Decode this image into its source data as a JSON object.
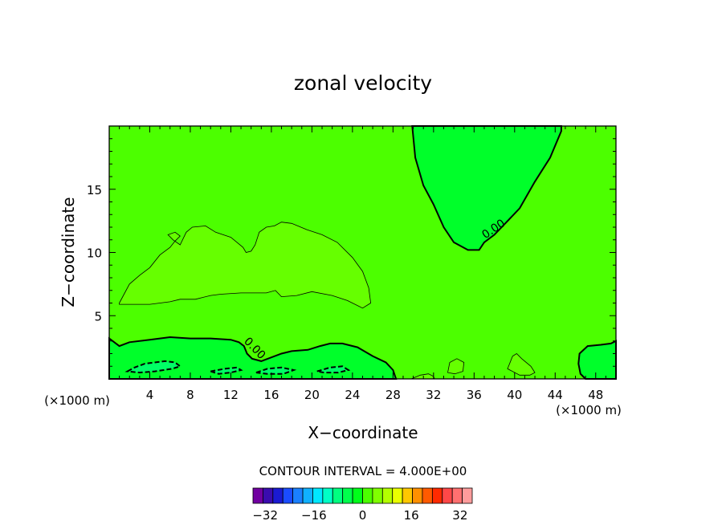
{
  "chart_data": {
    "type": "heatmap",
    "title": "zonal velocity",
    "xlabel": "X−coordinate",
    "ylabel": "Z−coordinate",
    "x_unit_left": "(×1000 m)",
    "x_unit_right": "(×1000 m)",
    "xlim": [
      0,
      50
    ],
    "ylim": [
      0,
      20
    ],
    "x_ticks": [
      4,
      8,
      12,
      16,
      20,
      24,
      28,
      32,
      36,
      40,
      44,
      48
    ],
    "y_ticks": [
      5,
      10,
      15
    ],
    "contour_interval_label": "CONTOUR INTERVAL = 4.000E+00",
    "contour_labels": [
      "0.00",
      "0.00"
    ],
    "background_level": 0,
    "regions": [
      {
        "name": "positive-mid-layer",
        "level": 4,
        "color": "#66ff00",
        "points": [
          [
            1,
            6
          ],
          [
            2,
            7.5
          ],
          [
            3,
            8.2
          ],
          [
            4,
            8.8
          ],
          [
            5,
            9.8
          ],
          [
            6,
            10.4
          ],
          [
            6.5,
            10.9
          ],
          [
            7,
            11.3
          ],
          [
            6.5,
            11.6
          ],
          [
            5.8,
            11.4
          ],
          [
            6.3,
            11
          ],
          [
            7,
            10.6
          ],
          [
            7.6,
            11.6
          ],
          [
            8.2,
            12
          ],
          [
            9.5,
            12.1
          ],
          [
            10.5,
            11.6
          ],
          [
            12,
            11.2
          ],
          [
            13.2,
            10.4
          ],
          [
            13.5,
            10
          ],
          [
            14,
            10.1
          ],
          [
            14.4,
            10.6
          ],
          [
            14.8,
            11.6
          ],
          [
            15.5,
            12
          ],
          [
            16.3,
            12.1
          ],
          [
            17,
            12.4
          ],
          [
            18,
            12.3
          ],
          [
            19.5,
            11.8
          ],
          [
            21,
            11.4
          ],
          [
            22.5,
            10.8
          ],
          [
            24,
            9.6
          ],
          [
            25,
            8.5
          ],
          [
            25.6,
            7.2
          ],
          [
            25.8,
            6
          ],
          [
            25,
            5.6
          ],
          [
            23.5,
            6.2
          ],
          [
            22,
            6.6
          ],
          [
            20,
            6.9
          ],
          [
            18.5,
            6.6
          ],
          [
            17,
            6.5
          ],
          [
            16.4,
            7
          ],
          [
            15.5,
            6.8
          ],
          [
            13,
            6.8
          ],
          [
            11,
            6.7
          ],
          [
            10,
            6.6
          ],
          [
            8.5,
            6.3
          ],
          [
            7,
            6.3
          ],
          [
            6,
            6.1
          ],
          [
            4,
            5.9
          ],
          [
            2.5,
            5.9
          ],
          [
            1,
            5.9
          ]
        ]
      },
      {
        "name": "negative-upper-right",
        "level": -4,
        "color": "#00ff2a",
        "points": [
          [
            29.9,
            20
          ],
          [
            30.2,
            17.5
          ],
          [
            31,
            15.3
          ],
          [
            32,
            13.8
          ],
          [
            33,
            12
          ],
          [
            34,
            10.8
          ],
          [
            35.4,
            10.2
          ],
          [
            36.5,
            10.2
          ],
          [
            37,
            10.8
          ],
          [
            38,
            11.4
          ],
          [
            39.2,
            12.4
          ],
          [
            40.5,
            13.5
          ],
          [
            42,
            15.6
          ],
          [
            43.5,
            17.5
          ],
          [
            44.6,
            19.6
          ],
          [
            44.6,
            20
          ]
        ]
      },
      {
        "name": "negative-bottom-left",
        "level": -4,
        "color": "#00ff2a",
        "points": [
          [
            0,
            0
          ],
          [
            0,
            3.2
          ],
          [
            1,
            2.6
          ],
          [
            2,
            2.9
          ],
          [
            4,
            3.1
          ],
          [
            6,
            3.3
          ],
          [
            8,
            3.2
          ],
          [
            10,
            3.2
          ],
          [
            12,
            3.1
          ],
          [
            12.8,
            2.9
          ],
          [
            13.3,
            2.6
          ],
          [
            13.6,
            2
          ],
          [
            14.1,
            1.6
          ],
          [
            15,
            1.4
          ],
          [
            16,
            1.7
          ],
          [
            17,
            2
          ],
          [
            18,
            2.2
          ],
          [
            19.6,
            2.3
          ],
          [
            20.8,
            2.6
          ],
          [
            21.8,
            2.8
          ],
          [
            23,
            2.8
          ],
          [
            24.5,
            2.5
          ],
          [
            26,
            1.8
          ],
          [
            27.3,
            1.3
          ],
          [
            28,
            0.7
          ],
          [
            28.3,
            0
          ]
        ]
      },
      {
        "name": "negative-bottom-right",
        "level": -4,
        "color": "#00ff2a",
        "points": [
          [
            47,
            0
          ],
          [
            46.5,
            0.4
          ],
          [
            46.3,
            1.2
          ],
          [
            46.4,
            2
          ],
          [
            47.2,
            2.6
          ],
          [
            48.5,
            2.7
          ],
          [
            49.5,
            2.8
          ],
          [
            50,
            3
          ],
          [
            50,
            0
          ]
        ]
      },
      {
        "name": "strong-negative-patch-1",
        "level": -8,
        "color": "#00ff66",
        "points": [
          [
            1.8,
            0.6
          ],
          [
            2.5,
            0.9
          ],
          [
            3.5,
            1.2
          ],
          [
            4.5,
            1.3
          ],
          [
            5.5,
            1.4
          ],
          [
            6.5,
            1.3
          ],
          [
            7,
            1
          ],
          [
            6.2,
            0.8
          ],
          [
            4.5,
            0.6
          ],
          [
            3,
            0.5
          ]
        ]
      },
      {
        "name": "strong-negative-patch-2",
        "level": -8,
        "color": "#00ff66",
        "points": [
          [
            10,
            0.6
          ],
          [
            10.8,
            0.4
          ],
          [
            12,
            0.5
          ],
          [
            13,
            0.7
          ],
          [
            12.6,
            0.9
          ],
          [
            11.4,
            0.8
          ]
        ]
      },
      {
        "name": "strong-negative-patch-3",
        "level": -8,
        "color": "#00ff66",
        "points": [
          [
            14.5,
            0.5
          ],
          [
            15.6,
            0.8
          ],
          [
            17,
            0.9
          ],
          [
            18.2,
            0.7
          ],
          [
            17.2,
            0.4
          ],
          [
            15.6,
            0.4
          ]
        ]
      },
      {
        "name": "strong-negative-patch-4",
        "level": -8,
        "color": "#00ff66",
        "points": [
          [
            20.5,
            0.6
          ],
          [
            21.8,
            0.9
          ],
          [
            23,
            1
          ],
          [
            23.6,
            0.7
          ],
          [
            22.6,
            0.5
          ],
          [
            21.2,
            0.5
          ]
        ]
      },
      {
        "name": "positive-patch-bottom-1",
        "level": 4,
        "color": "#66ff00",
        "points": [
          [
            33.4,
            0.5
          ],
          [
            33.6,
            1.3
          ],
          [
            34.3,
            1.6
          ],
          [
            35,
            1.3
          ],
          [
            34.9,
            0.6
          ],
          [
            34.1,
            0.4
          ]
        ]
      },
      {
        "name": "positive-patch-bottom-2",
        "level": 4,
        "color": "#66ff00",
        "points": [
          [
            39.3,
            0.8
          ],
          [
            39.8,
            1.8
          ],
          [
            40.2,
            2
          ],
          [
            40.7,
            1.6
          ],
          [
            41.6,
            1
          ],
          [
            42,
            0.5
          ],
          [
            41.5,
            0.3
          ],
          [
            40.5,
            0.3
          ]
        ]
      },
      {
        "name": "positive-patch-bottom-3",
        "level": 4,
        "color": "#66ff00",
        "points": [
          [
            29.8,
            0
          ],
          [
            30.7,
            0.3
          ],
          [
            31.5,
            0.4
          ],
          [
            32,
            0.2
          ],
          [
            32.1,
            0
          ]
        ]
      }
    ],
    "colorbar": {
      "tick_labels": [
        "−32",
        "−16",
        "0",
        "16",
        "32"
      ],
      "tick_values": [
        -32,
        -16,
        0,
        16,
        32
      ],
      "range": [
        -36,
        36
      ],
      "colors": [
        "#7000a0",
        "#3a0cae",
        "#1a1ad2",
        "#1a4cff",
        "#1a80ff",
        "#10b0ff",
        "#00e8ff",
        "#00ffc6",
        "#00ff80",
        "#00ff4c",
        "#00ff1a",
        "#4cff00",
        "#80ff00",
        "#b4ff00",
        "#eaff00",
        "#ffc800",
        "#ff9000",
        "#ff5a00",
        "#ff2a00",
        "#ff4848",
        "#ff7070",
        "#ff9c9c"
      ]
    }
  }
}
